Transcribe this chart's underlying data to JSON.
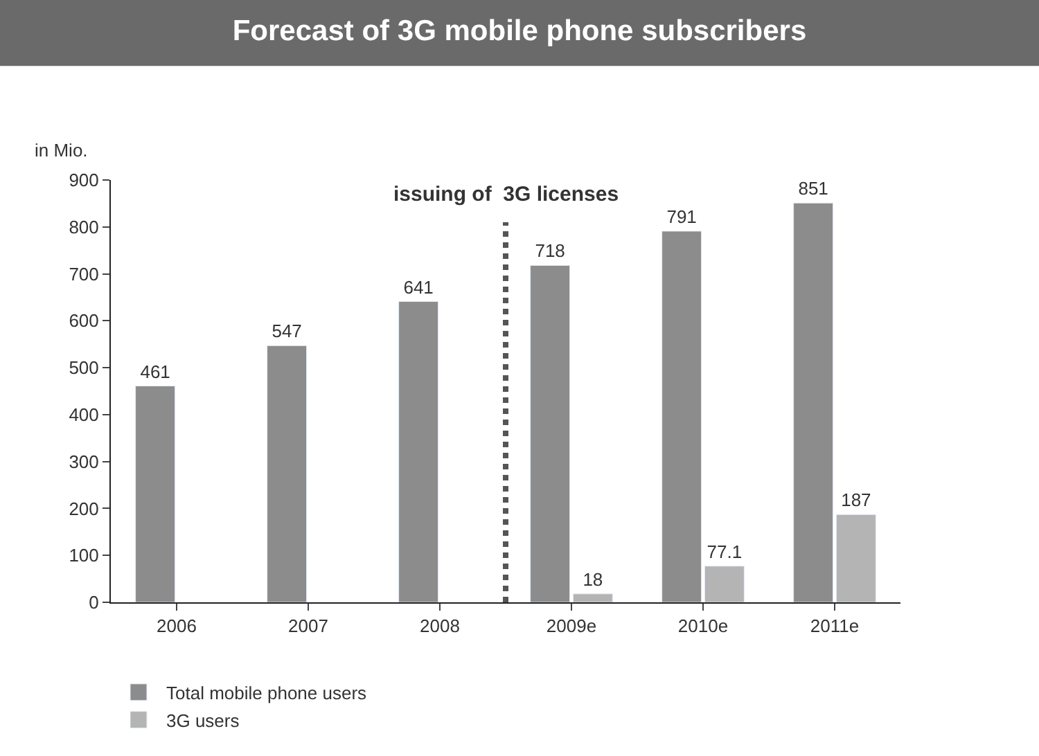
{
  "chart_data": {
    "type": "bar",
    "title": "Forecast of 3G mobile phone subscribers",
    "ylabel": "in Mio.",
    "categories": [
      "2006",
      "2007",
      "2008",
      "2009e",
      "2010e",
      "2011e"
    ],
    "series": [
      {
        "name": "Total mobile phone users",
        "color": "#8c8c8c",
        "values": [
          461,
          547,
          641,
          718,
          791,
          851
        ]
      },
      {
        "name": "3G users",
        "color": "#b4b4b4",
        "values": [
          null,
          null,
          null,
          18,
          77.1,
          187
        ]
      }
    ],
    "ylim": [
      0,
      900
    ],
    "yticks": [
      0,
      100,
      200,
      300,
      400,
      500,
      600,
      700,
      800,
      900
    ],
    "data_labels": true,
    "legend": "bottom",
    "annotations": [
      "issuing of  3G licenses"
    ]
  }
}
